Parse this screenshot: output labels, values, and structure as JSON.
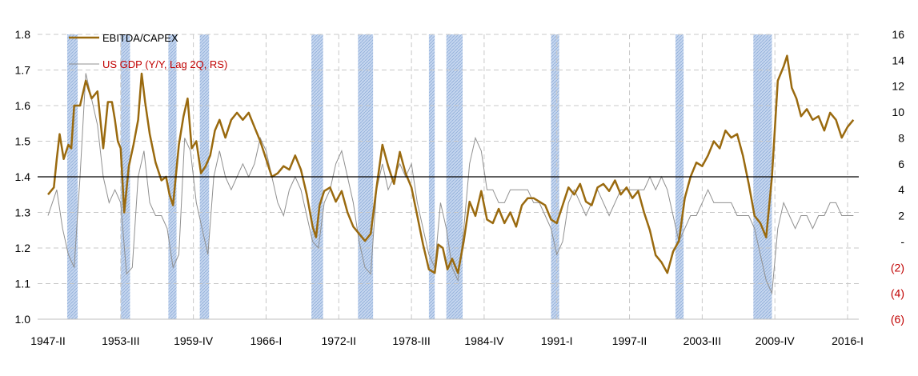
{
  "chart_data": {
    "type": "line",
    "title": "",
    "xlabel": "",
    "ylabel": "",
    "ylim": [
      1.0,
      1.8
    ],
    "y2lim": [
      -6,
      16
    ],
    "grid": "dashed",
    "legend_position": "top-left",
    "colors": {
      "ebitda": "#9a6a0f",
      "gdp": "#909090",
      "recession": "#a9c3e8",
      "legend_gdp_text": "#c00000",
      "negative_ticks": "#c00000"
    },
    "y_ticks": [
      "1.0",
      "1.1",
      "1.2",
      "1.3",
      "1.4",
      "1.5",
      "1.6",
      "1.7",
      "1.8"
    ],
    "y2_ticks": [
      "(6)",
      "(4)",
      "(2)",
      "-",
      "2",
      "4",
      "6",
      "8",
      "10",
      "12",
      "14",
      "16"
    ],
    "x_ticks": [
      "1947-II",
      "1953-III",
      "1959-IV",
      "1966-I",
      "1972-II",
      "1978-III",
      "1984-IV",
      "1991-I",
      "1997-II",
      "2003-III",
      "2009-IV",
      "2016-I"
    ],
    "reference_line": 1.4,
    "recessions": [
      [
        1948.9,
        1949.8
      ],
      [
        1953.5,
        1954.3
      ],
      [
        1957.6,
        1958.3
      ],
      [
        1960.3,
        1961.1
      ],
      [
        1969.9,
        1970.9
      ],
      [
        1973.9,
        1975.2
      ],
      [
        1980.0,
        1980.5
      ],
      [
        1981.5,
        1982.9
      ],
      [
        1990.5,
        1991.2
      ],
      [
        2001.2,
        2001.9
      ],
      [
        2007.9,
        2009.5
      ]
    ],
    "series": [
      {
        "name": "EBITDA/CAPEX",
        "axis": "left",
        "points": [
          [
            1947.25,
            1.35
          ],
          [
            1947.75,
            1.37
          ],
          [
            1948.0,
            1.45
          ],
          [
            1948.25,
            1.52
          ],
          [
            1948.6,
            1.45
          ],
          [
            1949.0,
            1.49
          ],
          [
            1949.25,
            1.48
          ],
          [
            1949.5,
            1.6
          ],
          [
            1950.0,
            1.6
          ],
          [
            1950.5,
            1.67
          ],
          [
            1951.0,
            1.62
          ],
          [
            1951.5,
            1.64
          ],
          [
            1952.0,
            1.48
          ],
          [
            1952.4,
            1.61
          ],
          [
            1952.75,
            1.61
          ],
          [
            1953.0,
            1.56
          ],
          [
            1953.25,
            1.5
          ],
          [
            1953.5,
            1.48
          ],
          [
            1953.8,
            1.3
          ],
          [
            1954.2,
            1.43
          ],
          [
            1954.6,
            1.49
          ],
          [
            1955.0,
            1.56
          ],
          [
            1955.3,
            1.69
          ],
          [
            1955.6,
            1.61
          ],
          [
            1956.0,
            1.52
          ],
          [
            1956.5,
            1.44
          ],
          [
            1957.0,
            1.39
          ],
          [
            1957.4,
            1.4
          ],
          [
            1957.7,
            1.35
          ],
          [
            1958.0,
            1.32
          ],
          [
            1958.5,
            1.49
          ],
          [
            1958.9,
            1.57
          ],
          [
            1959.25,
            1.62
          ],
          [
            1959.6,
            1.48
          ],
          [
            1960.0,
            1.5
          ],
          [
            1960.4,
            1.41
          ],
          [
            1960.8,
            1.43
          ],
          [
            1961.2,
            1.46
          ],
          [
            1961.6,
            1.53
          ],
          [
            1962.0,
            1.56
          ],
          [
            1962.5,
            1.51
          ],
          [
            1963.0,
            1.56
          ],
          [
            1963.5,
            1.58
          ],
          [
            1964.0,
            1.56
          ],
          [
            1964.5,
            1.58
          ],
          [
            1965.0,
            1.54
          ],
          [
            1965.5,
            1.5
          ],
          [
            1966.0,
            1.45
          ],
          [
            1966.5,
            1.4
          ],
          [
            1967.0,
            1.41
          ],
          [
            1967.5,
            1.43
          ],
          [
            1968.0,
            1.42
          ],
          [
            1968.5,
            1.46
          ],
          [
            1969.0,
            1.42
          ],
          [
            1969.5,
            1.35
          ],
          [
            1970.0,
            1.26
          ],
          [
            1970.3,
            1.23
          ],
          [
            1970.6,
            1.32
          ],
          [
            1971.0,
            1.36
          ],
          [
            1971.5,
            1.37
          ],
          [
            1972.0,
            1.33
          ],
          [
            1972.5,
            1.36
          ],
          [
            1973.0,
            1.3
          ],
          [
            1973.5,
            1.26
          ],
          [
            1974.0,
            1.24
          ],
          [
            1974.5,
            1.22
          ],
          [
            1975.0,
            1.24
          ],
          [
            1975.5,
            1.37
          ],
          [
            1976.0,
            1.49
          ],
          [
            1976.5,
            1.43
          ],
          [
            1977.0,
            1.38
          ],
          [
            1977.5,
            1.47
          ],
          [
            1978.0,
            1.41
          ],
          [
            1978.5,
            1.37
          ],
          [
            1979.0,
            1.29
          ],
          [
            1979.5,
            1.21
          ],
          [
            1980.0,
            1.14
          ],
          [
            1980.5,
            1.13
          ],
          [
            1980.8,
            1.21
          ],
          [
            1981.2,
            1.2
          ],
          [
            1981.6,
            1.14
          ],
          [
            1982.0,
            1.17
          ],
          [
            1982.5,
            1.13
          ],
          [
            1983.0,
            1.22
          ],
          [
            1983.5,
            1.33
          ],
          [
            1984.0,
            1.29
          ],
          [
            1984.5,
            1.36
          ],
          [
            1985.0,
            1.28
          ],
          [
            1985.5,
            1.27
          ],
          [
            1986.0,
            1.31
          ],
          [
            1986.5,
            1.27
          ],
          [
            1987.0,
            1.3
          ],
          [
            1987.5,
            1.26
          ],
          [
            1988.0,
            1.32
          ],
          [
            1988.5,
            1.34
          ],
          [
            1989.0,
            1.34
          ],
          [
            1989.5,
            1.33
          ],
          [
            1990.0,
            1.32
          ],
          [
            1990.5,
            1.28
          ],
          [
            1991.0,
            1.27
          ],
          [
            1991.5,
            1.32
          ],
          [
            1992.0,
            1.37
          ],
          [
            1992.5,
            1.35
          ],
          [
            1993.0,
            1.38
          ],
          [
            1993.5,
            1.33
          ],
          [
            1994.0,
            1.32
          ],
          [
            1994.5,
            1.37
          ],
          [
            1995.0,
            1.38
          ],
          [
            1995.5,
            1.36
          ],
          [
            1996.0,
            1.39
          ],
          [
            1996.5,
            1.35
          ],
          [
            1997.0,
            1.37
          ],
          [
            1997.5,
            1.34
          ],
          [
            1998.0,
            1.36
          ],
          [
            1998.5,
            1.3
          ],
          [
            1999.0,
            1.25
          ],
          [
            1999.5,
            1.18
          ],
          [
            2000.0,
            1.16
          ],
          [
            2000.5,
            1.13
          ],
          [
            2001.0,
            1.19
          ],
          [
            2001.5,
            1.22
          ],
          [
            2002.0,
            1.34
          ],
          [
            2002.5,
            1.4
          ],
          [
            2003.0,
            1.44
          ],
          [
            2003.5,
            1.43
          ],
          [
            2004.0,
            1.46
          ],
          [
            2004.5,
            1.5
          ],
          [
            2005.0,
            1.48
          ],
          [
            2005.5,
            1.53
          ],
          [
            2006.0,
            1.51
          ],
          [
            2006.5,
            1.52
          ],
          [
            2007.0,
            1.46
          ],
          [
            2007.5,
            1.38
          ],
          [
            2008.0,
            1.29
          ],
          [
            2008.5,
            1.27
          ],
          [
            2009.0,
            1.23
          ],
          [
            2009.5,
            1.4
          ],
          [
            2010.0,
            1.67
          ],
          [
            2010.5,
            1.71
          ],
          [
            2010.8,
            1.74
          ],
          [
            2011.2,
            1.65
          ],
          [
            2011.6,
            1.62
          ],
          [
            2012.0,
            1.57
          ],
          [
            2012.5,
            1.59
          ],
          [
            2013.0,
            1.56
          ],
          [
            2013.5,
            1.57
          ],
          [
            2014.0,
            1.53
          ],
          [
            2014.5,
            1.58
          ],
          [
            2015.0,
            1.56
          ],
          [
            2015.5,
            1.51
          ],
          [
            2016.0,
            1.54
          ],
          [
            2016.5,
            1.56
          ]
        ]
      },
      {
        "name": "US GDP (Y/Y, Lag 2Q, RS)",
        "axis": "right",
        "points": [
          [
            1947.25,
            2.0
          ],
          [
            1948.0,
            4.0
          ],
          [
            1948.5,
            1.0
          ],
          [
            1949.0,
            -1.0
          ],
          [
            1949.5,
            -2.0
          ],
          [
            1950.0,
            5.0
          ],
          [
            1950.5,
            13.0
          ],
          [
            1951.0,
            11.0
          ],
          [
            1951.5,
            9.0
          ],
          [
            1952.0,
            5.0
          ],
          [
            1952.5,
            3.0
          ],
          [
            1953.0,
            4.0
          ],
          [
            1953.5,
            3.0
          ],
          [
            1954.0,
            -2.5
          ],
          [
            1954.5,
            -2.0
          ],
          [
            1955.0,
            5.0
          ],
          [
            1955.5,
            7.0
          ],
          [
            1956.0,
            3.0
          ],
          [
            1956.5,
            2.0
          ],
          [
            1957.0,
            2.0
          ],
          [
            1957.5,
            1.0
          ],
          [
            1958.0,
            -2.0
          ],
          [
            1958.5,
            -1.0
          ],
          [
            1959.0,
            8.0
          ],
          [
            1959.5,
            7.0
          ],
          [
            1960.0,
            3.0
          ],
          [
            1960.5,
            1.0
          ],
          [
            1961.0,
            -1.0
          ],
          [
            1961.5,
            5.0
          ],
          [
            1962.0,
            7.0
          ],
          [
            1962.5,
            5.0
          ],
          [
            1963.0,
            4.0
          ],
          [
            1963.5,
            5.0
          ],
          [
            1964.0,
            6.0
          ],
          [
            1964.5,
            5.0
          ],
          [
            1965.0,
            6.0
          ],
          [
            1965.5,
            8.0
          ],
          [
            1966.0,
            7.0
          ],
          [
            1966.5,
            5.0
          ],
          [
            1967.0,
            3.0
          ],
          [
            1967.5,
            2.0
          ],
          [
            1968.0,
            4.0
          ],
          [
            1968.5,
            5.0
          ],
          [
            1969.0,
            4.0
          ],
          [
            1969.5,
            2.0
          ],
          [
            1970.0,
            0.0
          ],
          [
            1970.5,
            -0.5
          ],
          [
            1971.0,
            3.0
          ],
          [
            1971.5,
            4.0
          ],
          [
            1972.0,
            6.0
          ],
          [
            1972.5,
            7.0
          ],
          [
            1973.0,
            5.0
          ],
          [
            1973.5,
            3.0
          ],
          [
            1974.0,
            0.0
          ],
          [
            1974.5,
            -2.0
          ],
          [
            1975.0,
            -2.5
          ],
          [
            1975.5,
            4.0
          ],
          [
            1976.0,
            6.0
          ],
          [
            1976.5,
            4.0
          ],
          [
            1977.0,
            5.0
          ],
          [
            1977.5,
            6.0
          ],
          [
            1978.0,
            5.0
          ],
          [
            1978.5,
            6.0
          ],
          [
            1979.0,
            3.0
          ],
          [
            1979.5,
            1.0
          ],
          [
            1980.0,
            -1.0
          ],
          [
            1980.5,
            -2.0
          ],
          [
            1981.0,
            3.0
          ],
          [
            1981.5,
            1.0
          ],
          [
            1982.0,
            -2.0
          ],
          [
            1982.5,
            -3.0
          ],
          [
            1983.0,
            1.0
          ],
          [
            1983.5,
            6.0
          ],
          [
            1984.0,
            8.0
          ],
          [
            1984.5,
            7.0
          ],
          [
            1985.0,
            4.0
          ],
          [
            1985.5,
            4.0
          ],
          [
            1986.0,
            3.0
          ],
          [
            1986.5,
            3.0
          ],
          [
            1987.0,
            4.0
          ],
          [
            1987.5,
            4.0
          ],
          [
            1988.0,
            4.0
          ],
          [
            1988.5,
            4.0
          ],
          [
            1989.0,
            3.0
          ],
          [
            1989.5,
            3.0
          ],
          [
            1990.0,
            2.0
          ],
          [
            1990.5,
            1.0
          ],
          [
            1991.0,
            -1.0
          ],
          [
            1991.5,
            0.0
          ],
          [
            1992.0,
            3.0
          ],
          [
            1992.5,
            4.0
          ],
          [
            1993.0,
            3.0
          ],
          [
            1993.5,
            2.0
          ],
          [
            1994.0,
            3.0
          ],
          [
            1994.5,
            4.0
          ],
          [
            1995.0,
            3.0
          ],
          [
            1995.5,
            2.0
          ],
          [
            1996.0,
            3.0
          ],
          [
            1996.5,
            4.0
          ],
          [
            1997.0,
            4.0
          ],
          [
            1997.5,
            4.0
          ],
          [
            1998.0,
            4.0
          ],
          [
            1998.5,
            4.0
          ],
          [
            1999.0,
            5.0
          ],
          [
            1999.5,
            4.0
          ],
          [
            2000.0,
            5.0
          ],
          [
            2000.5,
            4.0
          ],
          [
            2001.0,
            2.0
          ],
          [
            2001.5,
            0.0
          ],
          [
            2002.0,
            1.0
          ],
          [
            2002.5,
            2.0
          ],
          [
            2003.0,
            2.0
          ],
          [
            2003.5,
            3.0
          ],
          [
            2004.0,
            4.0
          ],
          [
            2004.5,
            3.0
          ],
          [
            2005.0,
            3.0
          ],
          [
            2005.5,
            3.0
          ],
          [
            2006.0,
            3.0
          ],
          [
            2006.5,
            2.0
          ],
          [
            2007.0,
            2.0
          ],
          [
            2007.5,
            2.0
          ],
          [
            2008.0,
            1.0
          ],
          [
            2008.5,
            -1.0
          ],
          [
            2009.0,
            -3.0
          ],
          [
            2009.5,
            -4.0
          ],
          [
            2010.0,
            1.0
          ],
          [
            2010.5,
            3.0
          ],
          [
            2011.0,
            2.0
          ],
          [
            2011.5,
            1.0
          ],
          [
            2012.0,
            2.0
          ],
          [
            2012.5,
            2.0
          ],
          [
            2013.0,
            1.0
          ],
          [
            2013.5,
            2.0
          ],
          [
            2014.0,
            2.0
          ],
          [
            2014.5,
            3.0
          ],
          [
            2015.0,
            3.0
          ],
          [
            2015.5,
            2.0
          ],
          [
            2016.0,
            2.0
          ],
          [
            2016.5,
            2.0
          ]
        ]
      }
    ]
  },
  "legend": {
    "items": [
      {
        "label": "EBITDA/CAPEX"
      },
      {
        "label": "US GDP (Y/Y, Lag 2Q, RS)"
      }
    ]
  }
}
